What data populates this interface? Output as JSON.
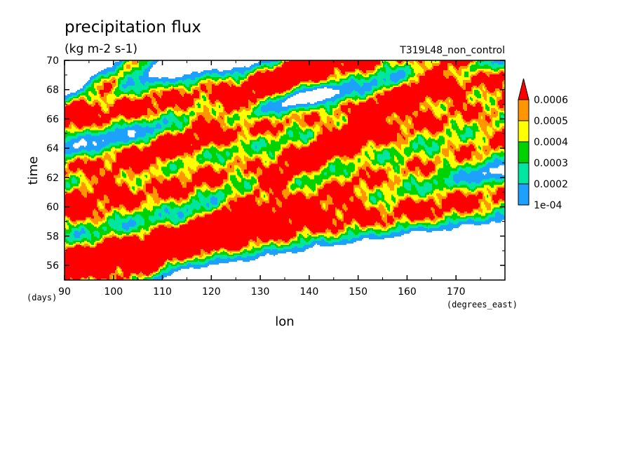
{
  "chart_data": {
    "type": "heatmap",
    "title": "precipitation flux",
    "units": "(kg m-2 s-1)",
    "run_label": "T319L48_non_control",
    "xlabel": "lon",
    "ylabel": "time",
    "x_units": "(degrees_east)",
    "y_units": "(days)",
    "xlim": [
      90,
      180
    ],
    "ylim": [
      55,
      70
    ],
    "x_ticks": [
      90,
      100,
      110,
      120,
      130,
      140,
      150,
      160,
      170
    ],
    "y_ticks": [
      56,
      58,
      60,
      62,
      64,
      66,
      68,
      70
    ],
    "grid": false,
    "legend": {
      "placement": "right",
      "levels": [
        0.0001,
        0.0002,
        0.0003,
        0.0004,
        0.0005,
        0.0006
      ],
      "labels": [
        "1e-04",
        "0.0002",
        "0.0003",
        "0.0004",
        "0.0005",
        "0.0006"
      ],
      "colors": [
        "#1ea0ff",
        "#00e6a0",
        "#00d200",
        "#ffff00",
        "#ff9600",
        "#ff0000"
      ],
      "extend": "max"
    },
    "bands": [
      {
        "name": "upper-right",
        "lon0": 170,
        "t0": 70.0,
        "slope_deg_per_day": -4.5,
        "width": 1.0,
        "peak": 0.00055,
        "max": 0.0009
      },
      {
        "name": "upper-middle",
        "lon0": 140,
        "t0": 70.0,
        "slope_deg_per_day": -5.0,
        "width": 1.1,
        "peak": 0.0005,
        "max": 0.0008
      },
      {
        "name": "upper-left",
        "lon0": 105,
        "t0": 70.0,
        "slope_deg_per_day": -4.0,
        "width": 0.9,
        "peak": 0.00045,
        "max": 0.0007
      },
      {
        "name": "central-main",
        "lon0": 90,
        "t0": 65.8,
        "slope_deg_per_day": -15.0,
        "width": 1.1,
        "peak": 0.0007,
        "max": 0.0011
      },
      {
        "name": "central-lower",
        "lon0": 90,
        "t0": 62.5,
        "slope_deg_per_day": -14.0,
        "width": 0.9,
        "peak": 0.0006,
        "max": 0.001
      },
      {
        "name": "right-band",
        "lon0": 150,
        "t0": 61.5,
        "slope_deg_per_day": -10.0,
        "width": 1.2,
        "peak": 0.0006,
        "max": 0.001
      },
      {
        "name": "lower-left",
        "lon0": 90,
        "t0": 59.5,
        "slope_deg_per_day": -12.0,
        "width": 1.3,
        "peak": 0.00065,
        "max": 0.001
      },
      {
        "name": "bottom",
        "lon0": 90,
        "t0": 56.2,
        "slope_deg_per_day": -20.0,
        "width": 1.2,
        "peak": 0.0007,
        "max": 0.0011
      }
    ]
  }
}
